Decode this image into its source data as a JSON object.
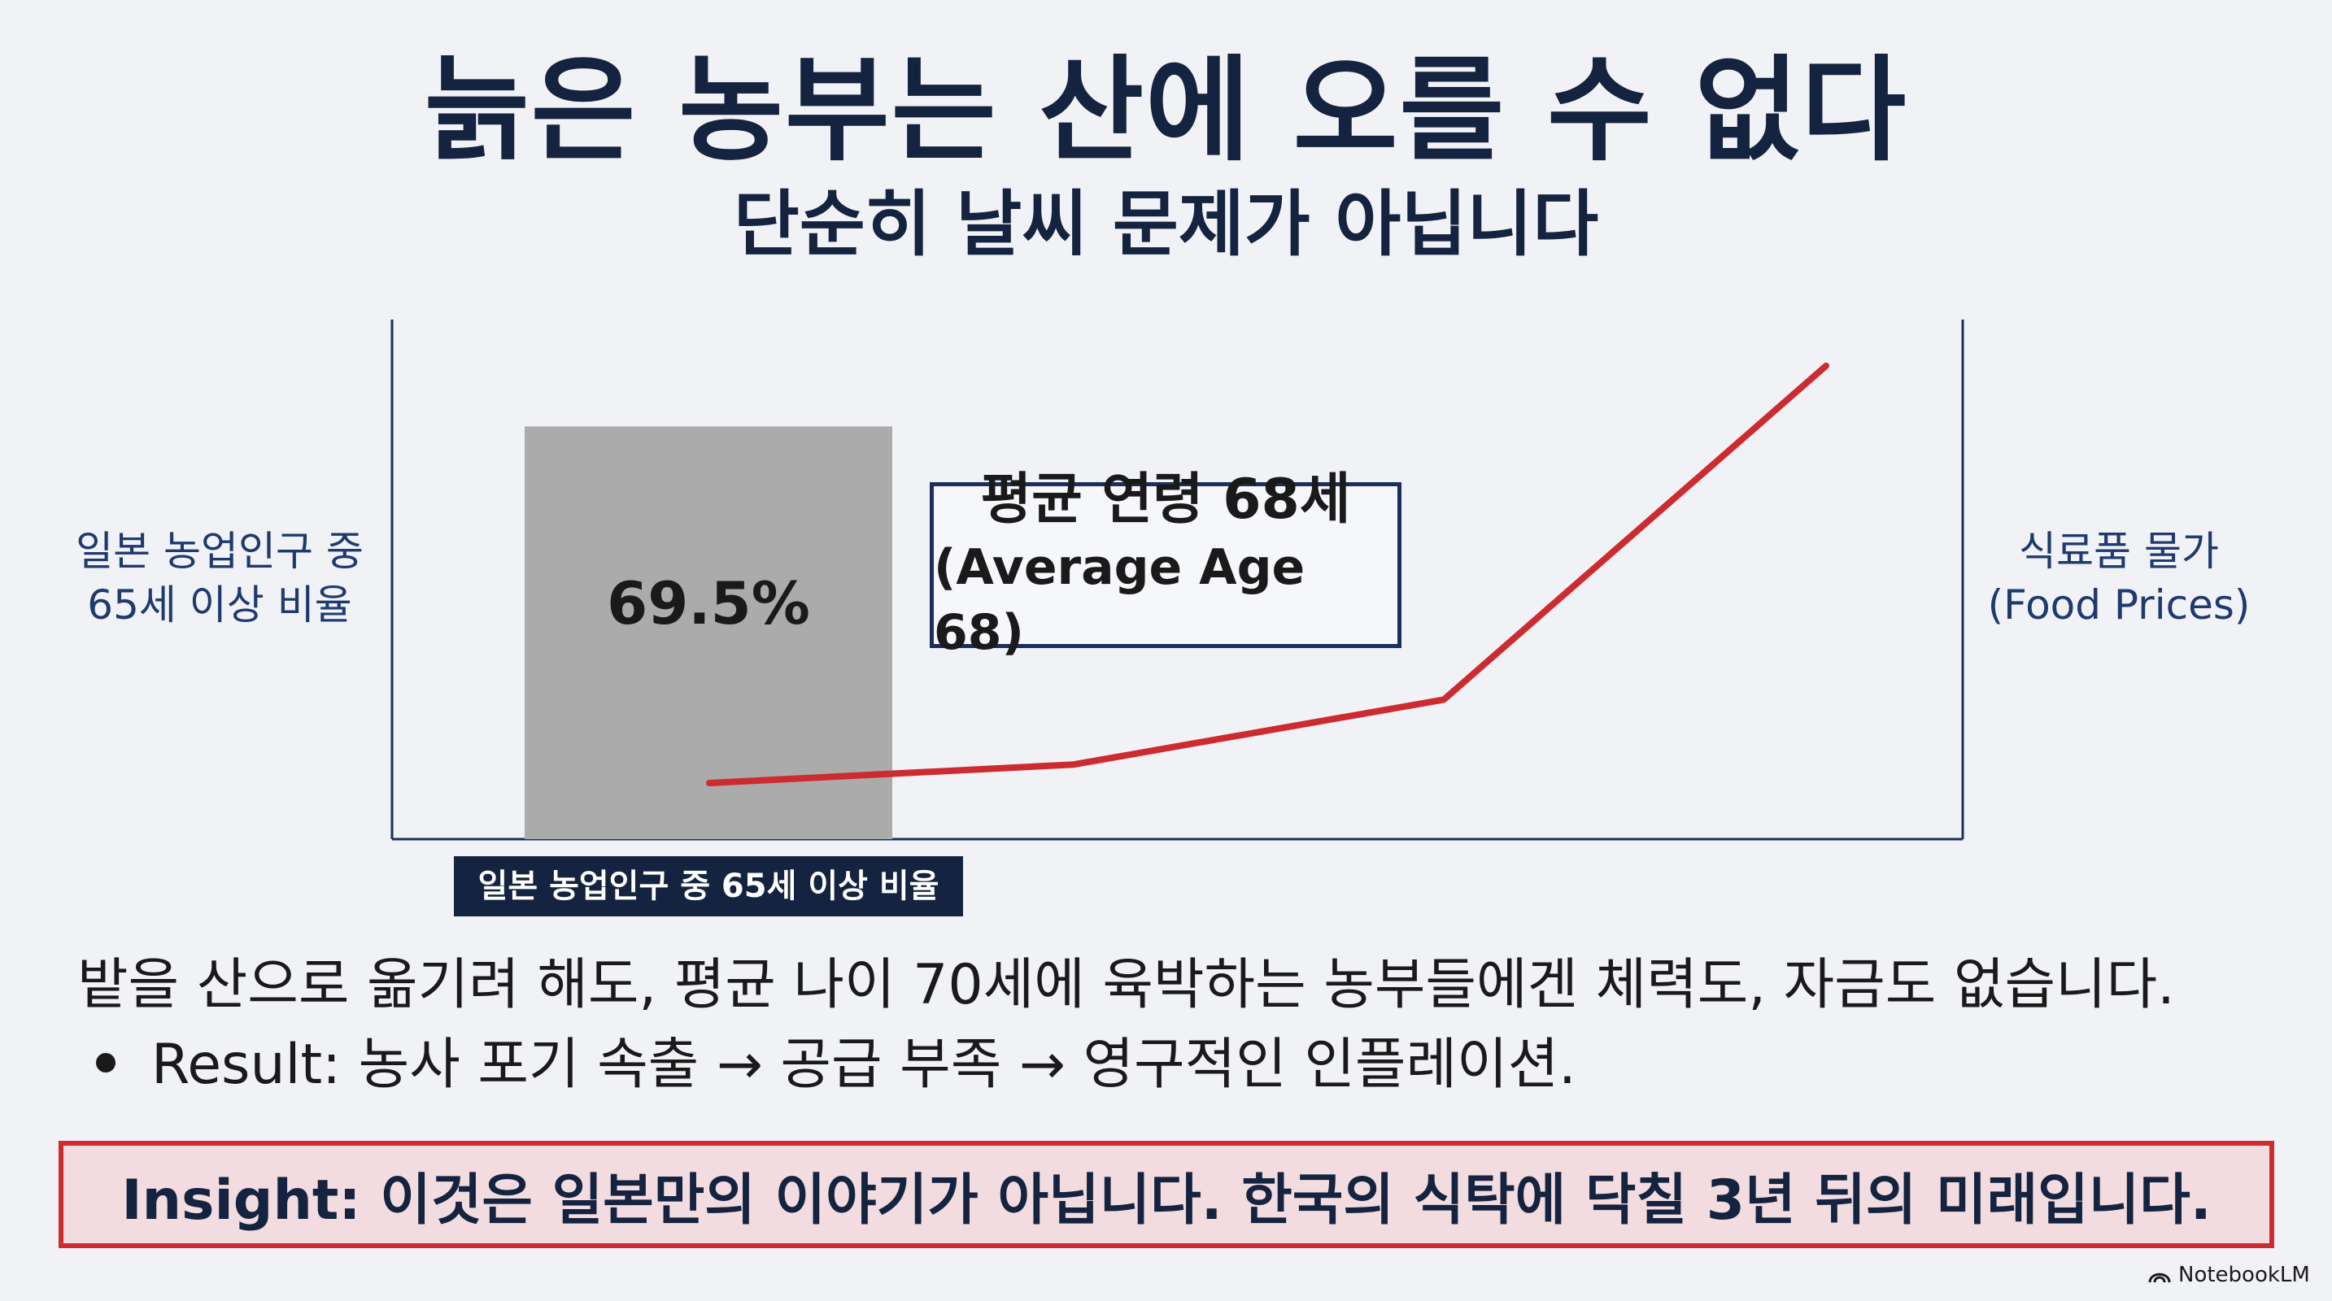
{
  "title": "늙은 농부는 산에 오를 수 없다",
  "subtitle": "단순히 날씨 문제가 아닙니다",
  "chart_data": {
    "type": "bar+line",
    "title": "",
    "left_axis_label": [
      "일본 농업인구 중",
      "65세 이상 비율"
    ],
    "right_axis_label": [
      "식료품 물가",
      "(Food Prices)"
    ],
    "bar": {
      "category": "일본 농업인구 중 65세 이상 비율",
      "value": 69.5,
      "label": "69.5%"
    },
    "line": {
      "name": "식료품 물가 (Food Prices)",
      "values": [
        1.0,
        1.4,
        2.8,
        10.0
      ],
      "color": "#cc2b2f"
    },
    "annotation": {
      "line1": "평균 연령 68세",
      "line2": "(Average Age 68)"
    },
    "bar_color": "#ababab",
    "axis_color": "#1b2f5e"
  },
  "body_text": "밭을 산으로 옮기려 해도, 평균 나이 70세에 육박하는 농부들에겐 체력도, 자금도 없습니다.",
  "bullet": "Result: 농사 포기 속출 → 공급 부족 → 영구적인 인플레이션.",
  "insight": "Insight: 이것은 일본만의 이야기가 아닙니다. 한국의 식탁에 닥칠 3년 뒤의 미래입니다.",
  "logo_text": "NotebookLM",
  "colors": {
    "navy": "#14233f",
    "accent_red": "#cc2b2f",
    "insight_bg": "#f3dcdf",
    "background": "#f1f2f6"
  }
}
